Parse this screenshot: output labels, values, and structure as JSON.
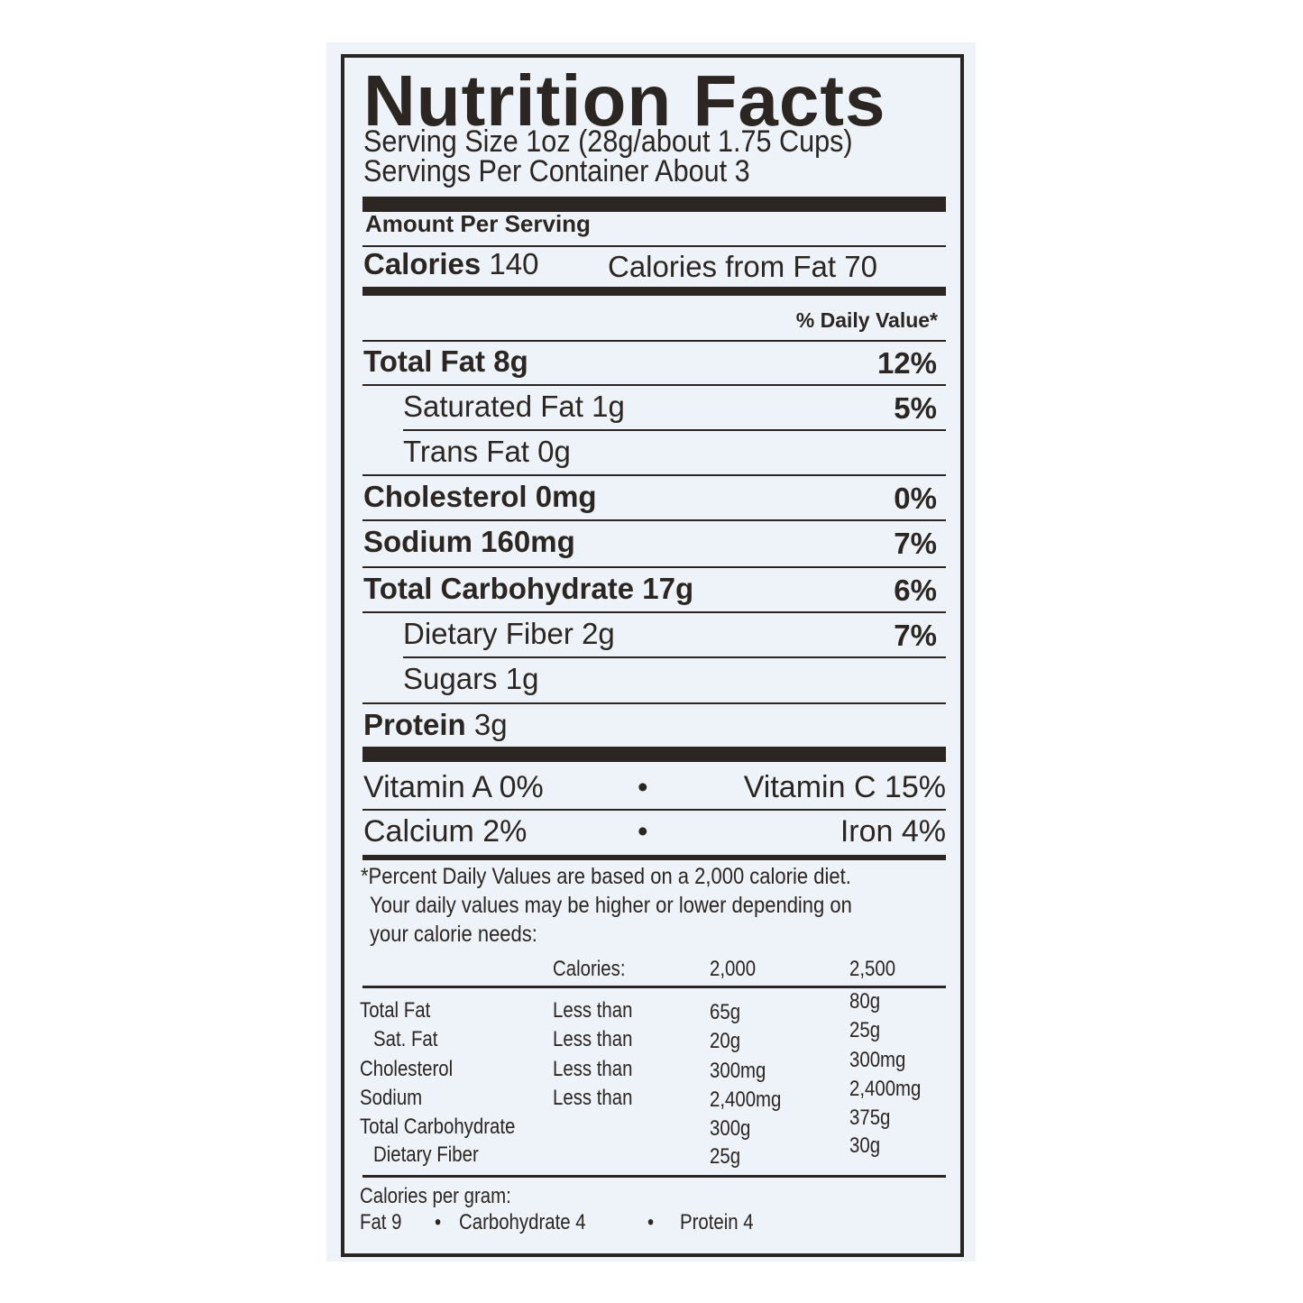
{
  "title": "Nutrition Facts",
  "serving_size": "Serving Size 1oz (28g/about 1.75 Cups)",
  "servings_per_container": "Servings Per Container  About 3",
  "amount_per_serving": "Amount Per Serving",
  "calories": {
    "label": "Calories",
    "value": "140",
    "from_fat_label": "Calories from Fat",
    "from_fat_value": "70"
  },
  "daily_value_header": "% Daily Value*",
  "nutrients": [
    {
      "label": "Total Fat",
      "amount": "8g",
      "dv": "12%"
    },
    {
      "label": "Saturated Fat",
      "amount": "1g",
      "dv": "5%"
    },
    {
      "label": "Trans Fat",
      "amount": "0g",
      "dv": ""
    },
    {
      "label": "Cholesterol",
      "amount": "0mg",
      "dv": "0%"
    },
    {
      "label": "Sodium",
      "amount": "160mg",
      "dv": "7%"
    },
    {
      "label": "Total Carbohydrate",
      "amount": "17g",
      "dv": "6%"
    },
    {
      "label": "Dietary Fiber",
      "amount": "2g",
      "dv": "7%"
    },
    {
      "label": "Sugars",
      "amount": "1g",
      "dv": ""
    },
    {
      "label": "Protein",
      "amount": "3g",
      "dv": ""
    }
  ],
  "vitamins": {
    "vitamin_a": "Vitamin A 0%",
    "vitamin_c": "Vitamin C 15%",
    "calcium": "Calcium 2%",
    "iron": "Iron 4%",
    "separator": "•"
  },
  "footnote": [
    "*Percent Daily Values are based on a 2,000 calorie diet.",
    "Your daily values may be higher or lower depending on",
    "your calorie needs:"
  ],
  "dv_table": {
    "header": [
      "Calories:",
      "2,000",
      "2,500"
    ],
    "rows": [
      [
        "Total Fat",
        "Less than",
        "65g",
        "80g"
      ],
      [
        "Sat. Fat",
        "Less than",
        "20g",
        "25g"
      ],
      [
        "Cholesterol",
        "Less than",
        "300mg",
        "300mg"
      ],
      [
        "Sodium",
        "Less than",
        "2,400mg",
        "2,400mg"
      ],
      [
        "Total Carbohydrate",
        "",
        "300g",
        "375g"
      ],
      [
        "Dietary Fiber",
        "",
        "25g",
        "30g"
      ]
    ]
  },
  "calories_per_gram": {
    "label": "Calories per gram:",
    "fat": "Fat 9",
    "carbohydrate": "Carbohydrate 4",
    "protein": "Protein 4",
    "separator": "•"
  },
  "colors": {
    "ink": "#2b2622",
    "label_background": "#eef2f9"
  }
}
